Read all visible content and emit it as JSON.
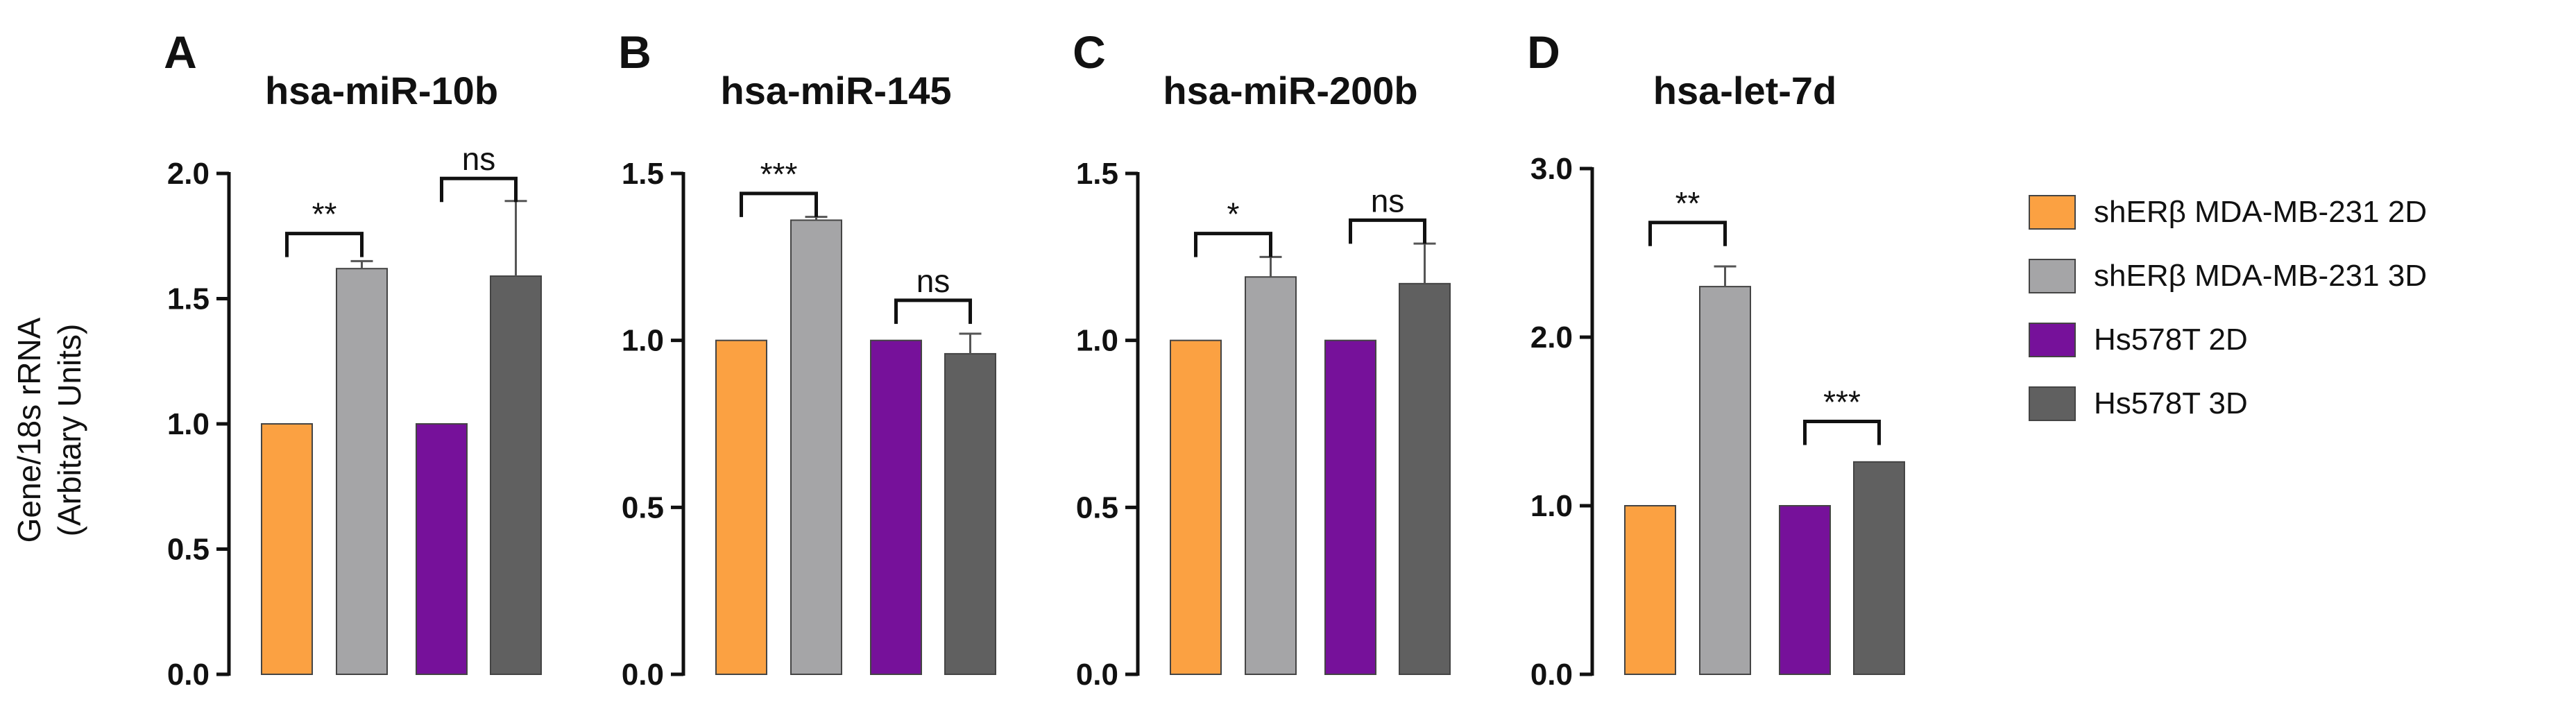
{
  "colors": {
    "shERb_2D": "#FBA142",
    "shERb_3D": "#A5A5A7",
    "hs_2D": "#76119A",
    "hs_3D": "#606060"
  },
  "ylabel_line1": "Gene/18s rRNA",
  "ylabel_line2": "(Arbitary Units)",
  "legend": [
    {
      "label": "shERβ MDA-MB-231 2D",
      "color": "#FBA142"
    },
    {
      "label": "shERβ MDA-MB-231 3D",
      "color": "#A5A5A7"
    },
    {
      "label": "Hs578T 2D",
      "color": "#76119A"
    },
    {
      "label": "Hs578T 3D",
      "color": "#606060"
    }
  ],
  "chart_data": [
    {
      "type": "bar",
      "panel": "A",
      "title": "hsa-miR-10b",
      "categories": [
        "shERβ MDA-MB-231 2D",
        "shERβ MDA-MB-231 3D",
        "Hs578T 2D",
        "Hs578T 3D"
      ],
      "values": [
        1.0,
        1.62,
        1.0,
        1.59
      ],
      "errors": [
        0,
        0.03,
        0,
        0.3
      ],
      "ylim": [
        0,
        2.0
      ],
      "yticks": [
        "0.0",
        "0.5",
        "1.0",
        "1.5",
        "2.0"
      ],
      "significance": [
        {
          "pair": [
            0,
            1
          ],
          "label": "**",
          "level": 1.76
        },
        {
          "pair": [
            2,
            3
          ],
          "label": "ns",
          "level": 1.98
        }
      ]
    },
    {
      "type": "bar",
      "panel": "B",
      "title": "hsa-miR-145",
      "categories": [
        "shERβ MDA-MB-231 2D",
        "shERβ MDA-MB-231 3D",
        "Hs578T 2D",
        "Hs578T 3D"
      ],
      "values": [
        1.0,
        1.36,
        1.0,
        0.96
      ],
      "errors": [
        0,
        0.01,
        0,
        0.06
      ],
      "ylim": [
        0,
        1.5
      ],
      "yticks": [
        "0.0",
        "0.5",
        "1.0",
        "1.5"
      ],
      "significance": [
        {
          "pair": [
            0,
            1
          ],
          "label": "***",
          "level": 1.44
        },
        {
          "pair": [
            2,
            3
          ],
          "label": "ns",
          "level": 1.12
        }
      ]
    },
    {
      "type": "bar",
      "panel": "C",
      "title": "hsa-miR-200b",
      "categories": [
        "shERβ MDA-MB-231 2D",
        "shERβ MDA-MB-231 3D",
        "Hs578T 2D",
        "Hs578T 3D"
      ],
      "values": [
        1.0,
        1.19,
        1.0,
        1.17
      ],
      "errors": [
        0,
        0.06,
        0,
        0.12
      ],
      "ylim": [
        0,
        1.5
      ],
      "yticks": [
        "0.0",
        "0.5",
        "1.0",
        "1.5"
      ],
      "significance": [
        {
          "pair": [
            0,
            1
          ],
          "label": "*",
          "level": 1.32
        },
        {
          "pair": [
            2,
            3
          ],
          "label": "ns",
          "level": 1.36
        }
      ]
    },
    {
      "type": "bar",
      "panel": "D",
      "title": "hsa-let-7d",
      "categories": [
        "shERβ MDA-MB-231 2D",
        "shERβ MDA-MB-231 3D",
        "Hs578T 2D",
        "Hs578T 3D"
      ],
      "values": [
        1.0,
        2.3,
        1.0,
        1.26
      ],
      "errors": [
        0,
        0.12,
        0,
        0
      ],
      "ylim": [
        0,
        3.0
      ],
      "yticks": [
        "0.0",
        "1.0",
        "2.0",
        "3.0"
      ],
      "significance": [
        {
          "pair": [
            0,
            1
          ],
          "label": "**",
          "level": 2.68
        },
        {
          "pair": [
            2,
            3
          ],
          "label": "***",
          "level": 1.5
        }
      ]
    }
  ]
}
